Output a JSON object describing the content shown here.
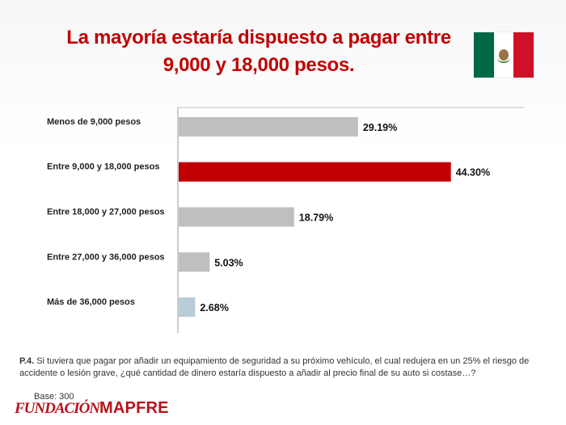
{
  "title_line1": "La mayoría estaría dispuesto a pagar entre",
  "title_line2": "9,000 y 18,000 pesos.",
  "flag": {
    "name": "mexico-flag",
    "colors": [
      "#006847",
      "#ffffff",
      "#ce1126"
    ]
  },
  "chart_data": {
    "type": "bar",
    "orientation": "horizontal",
    "categories": [
      "Menos de 9,000 pesos",
      "Entre 9,000 y 18,000 pesos",
      "Entre 18,000 y 27,000 pesos",
      "Entre  27,000 y 36,000 pesos",
      "Más de 36,000 pesos"
    ],
    "values": [
      29.19,
      44.3,
      18.79,
      5.03,
      2.68
    ],
    "value_labels": [
      "29.19%",
      "44.30%",
      "18.79%",
      "5.03%",
      "2.68%"
    ],
    "bar_colors": [
      "#bfbfbf",
      "#c00000",
      "#bfbfbf",
      "#bfbfbf",
      "#b9cdd8"
    ],
    "xlim": [
      0,
      50
    ],
    "grid": false
  },
  "question": {
    "id": "P.4.",
    "text": "Si tuviera que pagar por añadir un equipamiento de seguridad a su próximo vehículo, el cual redujera en un 25% el riesgo de accidente o lesión grave, ¿qué cantidad de dinero estaría dispuesto a añadir al precio final de su auto si costase…?"
  },
  "base": "Base: 300",
  "logo": {
    "part1": "FUNDACIÓN",
    "part2": "MAPFRE",
    "color": "#b5121b"
  }
}
